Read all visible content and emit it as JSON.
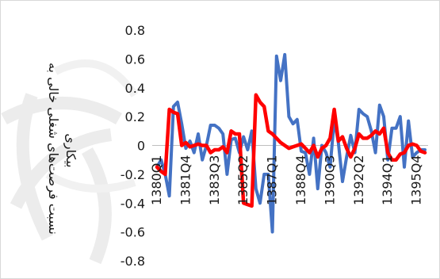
{
  "chart_data": {
    "type": "line",
    "title": "",
    "ylabel": "نسبت فرصت‌های شغلی خالی به بیکاری",
    "xlabel": "",
    "ylim": [
      -0.8,
      0.8
    ],
    "y_ticks": [
      0.8,
      0.6,
      0.4,
      0.2,
      0,
      -0.2,
      -0.4,
      -0.6,
      -0.8
    ],
    "y_tick_labels": [
      "0.8",
      "0.6",
      "0.4",
      "0.2",
      "0",
      "-0.2",
      "-0.4",
      "-0.6",
      "-0.8"
    ],
    "x_tick_labels": [
      "1380Q1",
      "1381Q4",
      "1383Q3",
      "1385Q2",
      "1387Q1",
      "1388Q4",
      "1390Q3",
      "1392Q2",
      "1394Q1",
      "1395Q4"
    ],
    "x": [
      "1380Q1",
      "1380Q2",
      "1380Q3",
      "1380Q4",
      "1381Q1",
      "1381Q2",
      "1381Q3",
      "1381Q4",
      "1382Q1",
      "1382Q2",
      "1382Q3",
      "1382Q4",
      "1383Q1",
      "1383Q2",
      "1383Q3",
      "1383Q4",
      "1384Q1",
      "1384Q2",
      "1384Q3",
      "1384Q4",
      "1385Q1",
      "1385Q2",
      "1385Q3",
      "1385Q4",
      "1386Q1",
      "1386Q2",
      "1386Q3",
      "1386Q4",
      "1387Q1",
      "1387Q2",
      "1387Q3",
      "1387Q4",
      "1388Q1",
      "1388Q2",
      "1388Q3",
      "1388Q4",
      "1389Q1",
      "1389Q2",
      "1389Q3",
      "1389Q4",
      "1390Q1",
      "1390Q2",
      "1390Q3",
      "1390Q4",
      "1391Q1",
      "1391Q2",
      "1391Q3",
      "1391Q4",
      "1392Q1",
      "1392Q2",
      "1392Q3",
      "1392Q4",
      "1393Q1",
      "1393Q2",
      "1393Q3",
      "1393Q4",
      "1394Q1",
      "1394Q2",
      "1394Q3",
      "1394Q4",
      "1395Q1",
      "1395Q2",
      "1395Q3",
      "1395Q4",
      "1396Q1",
      "1396Q2"
    ],
    "series": [
      {
        "color": "#4472C4",
        "values": [
          -0.15,
          -0.1,
          -0.2,
          -0.35,
          0.27,
          0.3,
          0.15,
          -0.02,
          0.03,
          -0.05,
          0.08,
          -0.1,
          0.0,
          0.14,
          0.14,
          0.12,
          0.08,
          -0.2,
          0.04,
          0.05,
          -0.05,
          0.06,
          -0.03,
          0.1,
          -0.3,
          -0.4,
          -0.2,
          -0.2,
          -0.6,
          0.62,
          0.45,
          0.63,
          0.2,
          0.15,
          0.18,
          -0.04,
          -0.05,
          -0.2,
          0.05,
          -0.3,
          0.0,
          -0.05,
          -0.15,
          0.18,
          0.02,
          -0.25,
          -0.08,
          0.07,
          -0.05,
          0.25,
          0.22,
          0.2,
          0.1,
          -0.05,
          0.28,
          0.2,
          -0.1,
          0.12,
          0.12,
          0.2,
          -0.15,
          0.17,
          -0.08,
          -0.05,
          -0.03,
          -0.03
        ]
      },
      {
        "color": "#FF0000",
        "values": [
          -0.15,
          -0.18,
          -0.2,
          0.25,
          0.23,
          0.22,
          0.0,
          0.02,
          -0.01,
          0.0,
          0.01,
          0.0,
          0.0,
          -0.05,
          -0.03,
          -0.03,
          -0.01,
          -0.05,
          0.1,
          0.08,
          0.08,
          -0.4,
          -0.41,
          -0.42,
          0.35,
          0.3,
          0.27,
          0.1,
          0.08,
          0.05,
          0.02,
          0.0,
          -0.02,
          -0.01,
          0.0,
          0.01,
          -0.02,
          -0.05,
          0.0,
          -0.08,
          -0.02,
          0.0,
          0.05,
          0.25,
          0.03,
          0.06,
          -0.02,
          -0.08,
          -0.02,
          0.08,
          0.05,
          0.05,
          0.07,
          0.1,
          0.08,
          0.12,
          -0.05,
          -0.1,
          -0.1,
          -0.06,
          -0.05,
          0.0,
          0.01,
          0.0,
          -0.04,
          -0.05
        ]
      }
    ],
    "grid": false,
    "legend": "none"
  }
}
